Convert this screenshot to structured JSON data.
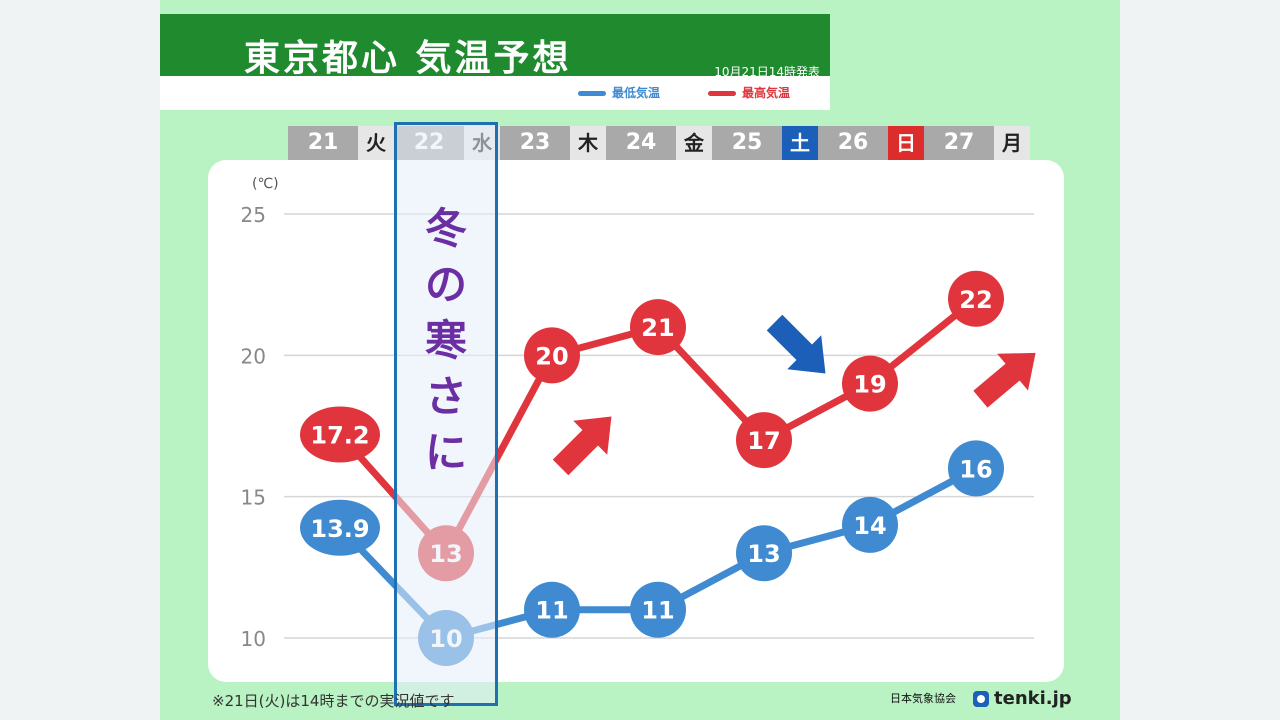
{
  "header": {
    "title": "東京都心 気温予想",
    "issued": "10月21日14時発表",
    "legend_min": "最低気温",
    "legend_max": "最高気温"
  },
  "days": [
    {
      "num": "21",
      "weekday": "火",
      "kind": "weekday"
    },
    {
      "num": "22",
      "weekday": "水",
      "kind": "weekday"
    },
    {
      "num": "23",
      "weekday": "木",
      "kind": "weekday"
    },
    {
      "num": "24",
      "weekday": "金",
      "kind": "weekday"
    },
    {
      "num": "25",
      "weekday": "土",
      "kind": "sat"
    },
    {
      "num": "26",
      "weekday": "日",
      "kind": "sun"
    },
    {
      "num": "27",
      "weekday": "月",
      "kind": "weekday"
    }
  ],
  "annotation": [
    "冬",
    "の",
    "寒",
    "さ",
    "に"
  ],
  "footer": {
    "note": "※21日(火)は14時までの実況値です",
    "credit": "日本気象協会",
    "brand": "tenki.jp"
  },
  "colors": {
    "min_series": "#3f8ad0",
    "max_series": "#e0353d",
    "arrow_up": "#e0353d",
    "arrow_down": "#1b5fb8",
    "panel_bg": "#b9f2c3",
    "title_bg": "#1f8a2e"
  },
  "chart_data": {
    "type": "line",
    "title": "東京都心 気温予想",
    "ylabel": "(℃)",
    "ylim": [
      10,
      25
    ],
    "yticks": [
      10,
      15,
      20,
      25
    ],
    "grid": true,
    "categories": [
      "21",
      "22",
      "23",
      "24",
      "25",
      "26",
      "27"
    ],
    "series": [
      {
        "name": "最高気温",
        "values": [
          17.2,
          13,
          20,
          21,
          17,
          19,
          22
        ],
        "labels": [
          "17.2",
          "13",
          "20",
          "21",
          "17",
          "19",
          "22"
        ]
      },
      {
        "name": "最低気温",
        "values": [
          13.9,
          10,
          11,
          11,
          13,
          14,
          16
        ],
        "labels": [
          "13.9",
          "10",
          "11",
          "11",
          "13",
          "14",
          "16"
        ]
      }
    ],
    "trend_arrows": [
      "up",
      "down",
      "up"
    ]
  }
}
